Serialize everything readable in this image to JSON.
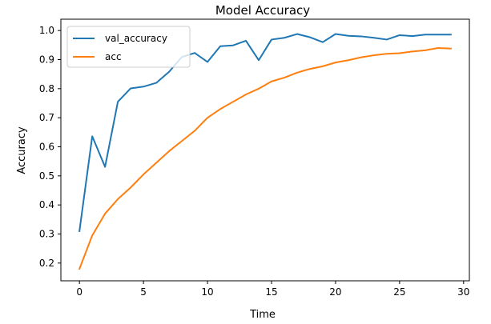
{
  "chart_data": {
    "type": "line",
    "title": "Model Accuracy",
    "xlabel": "Time",
    "ylabel": "Accuracy",
    "xlim": [
      -1.45,
      30.45
    ],
    "ylim": [
      0.139,
      1.039
    ],
    "xticks": [
      0,
      5,
      10,
      15,
      20,
      25,
      30
    ],
    "xtick_labels": [
      "0",
      "5",
      "10",
      "15",
      "20",
      "25",
      "30"
    ],
    "yticks": [
      0.2,
      0.3,
      0.4,
      0.5,
      0.6,
      0.7,
      0.8,
      0.9,
      1.0
    ],
    "ytick_labels": [
      "0.2",
      "0.3",
      "0.4",
      "0.5",
      "0.6",
      "0.7",
      "0.8",
      "0.9",
      "1.0"
    ],
    "grid": false,
    "legend_position": "upper-left",
    "x": [
      0,
      1,
      2,
      3,
      4,
      5,
      6,
      7,
      8,
      9,
      10,
      11,
      12,
      13,
      14,
      15,
      16,
      17,
      18,
      19,
      20,
      21,
      22,
      23,
      24,
      25,
      26,
      27,
      28,
      29
    ],
    "series": [
      {
        "name": "val_accuracy",
        "color": "#1f77b4",
        "values": [
          0.31,
          0.636,
          0.531,
          0.755,
          0.801,
          0.807,
          0.82,
          0.858,
          0.909,
          0.923,
          0.892,
          0.946,
          0.949,
          0.965,
          0.898,
          0.969,
          0.975,
          0.988,
          0.977,
          0.96,
          0.988,
          0.982,
          0.98,
          0.975,
          0.969,
          0.984,
          0.981,
          0.986,
          0.986,
          0.986
        ]
      },
      {
        "name": "acc",
        "color": "#ff7f0e",
        "values": [
          0.18,
          0.295,
          0.37,
          0.42,
          0.46,
          0.505,
          0.545,
          0.585,
          0.62,
          0.655,
          0.7,
          0.73,
          0.755,
          0.78,
          0.8,
          0.825,
          0.838,
          0.855,
          0.868,
          0.877,
          0.89,
          0.898,
          0.908,
          0.915,
          0.92,
          0.922,
          0.928,
          0.932,
          0.94,
          0.938
        ]
      }
    ]
  }
}
